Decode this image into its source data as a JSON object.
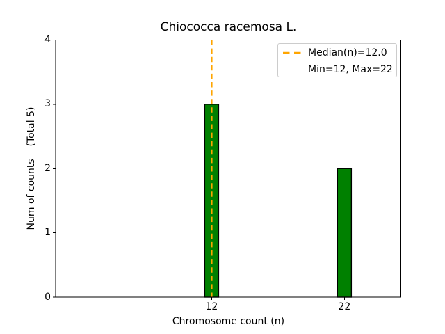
{
  "chart_data": {
    "type": "bar",
    "title": "Chiococca racemosa L.",
    "xlabel": "Chromosome count (n)",
    "ylabel": "Num of counts    (Total 5)",
    "categories": [
      12,
      22
    ],
    "values": [
      3,
      2
    ],
    "total_counts": 5,
    "bar_color": "#008000",
    "bar_edge_color": "#000000",
    "bar_width_units": 1.05,
    "median_line": {
      "x": 12.0,
      "color": "#FFA500",
      "style": "dashed"
    },
    "stats": {
      "median": 12.0,
      "min": 12,
      "max": 22
    },
    "legend": {
      "position": "upper right",
      "entries": [
        "Median(n)=12.0",
        "Min=12, Max=22"
      ]
    },
    "xlim": [
      0.25,
      26.25
    ],
    "ylim": [
      0,
      4
    ],
    "xticks": [
      12,
      22
    ],
    "yticks": [
      0,
      1,
      2,
      3,
      4
    ],
    "grid": false
  }
}
